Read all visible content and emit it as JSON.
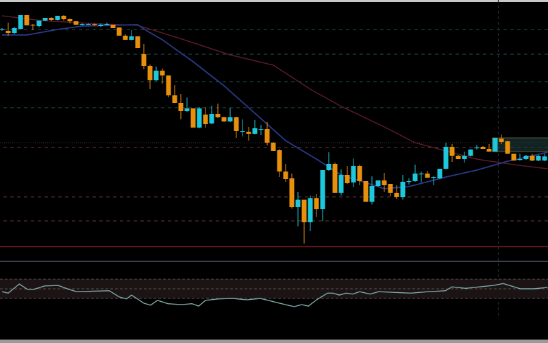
{
  "chart_data": [
    {
      "type": "candlestick",
      "title": "",
      "xlabel": "",
      "ylabel": "",
      "ylim": [
        40,
        400
      ],
      "grid": false,
      "colors": {
        "bull": "#1ec8dc",
        "bear": "#e8900c",
        "ma_fast": "#2a3a8a",
        "ma_slow": "#5a1a2a",
        "background": "#000000"
      },
      "candles_ohlc": [
        [
          357,
          359,
          355,
          358
        ],
        [
          355,
          367,
          348,
          352
        ],
        [
          352,
          361,
          350,
          359
        ],
        [
          358,
          378,
          357,
          378
        ],
        [
          378,
          378,
          363,
          363
        ],
        [
          364,
          365,
          356,
          363
        ],
        [
          362,
          370,
          360,
          370
        ],
        [
          370,
          374,
          369,
          374
        ],
        [
          374,
          375,
          369,
          371
        ],
        [
          371,
          377,
          370,
          377
        ],
        [
          377,
          378,
          370,
          372
        ],
        [
          372,
          373,
          366,
          369
        ],
        [
          369,
          369,
          364,
          364
        ],
        [
          364,
          366,
          363,
          365
        ],
        [
          365,
          366,
          364,
          365
        ],
        [
          365,
          366,
          362,
          364
        ],
        [
          362,
          366,
          361,
          364
        ],
        [
          364,
          367,
          363,
          365
        ],
        [
          364,
          364,
          359,
          359
        ],
        [
          360,
          360,
          348,
          348
        ],
        [
          348,
          350,
          342,
          342
        ],
        [
          342,
          356,
          341,
          347
        ],
        [
          347,
          347,
          330,
          330
        ],
        [
          321,
          336,
          299,
          304
        ],
        [
          304,
          306,
          270,
          283
        ],
        [
          283,
          303,
          282,
          297
        ],
        [
          297,
          300,
          278,
          290
        ],
        [
          290,
          290,
          258,
          261
        ],
        [
          261,
          276,
          250,
          250
        ],
        [
          250,
          263,
          226,
          238
        ],
        [
          238,
          258,
          237,
          242
        ],
        [
          242,
          242,
          214,
          214
        ],
        [
          214,
          244,
          213,
          242
        ],
        [
          233,
          244,
          214,
          219
        ],
        [
          220,
          246,
          219,
          234
        ],
        [
          234,
          249,
          228,
          229
        ],
        [
          229,
          230,
          222,
          223
        ],
        [
          223,
          243,
          222,
          229
        ],
        [
          229,
          230,
          199,
          209
        ],
        [
          209,
          226,
          201,
          209
        ],
        [
          208,
          215,
          195,
          205
        ],
        [
          205,
          225,
          204,
          213
        ],
        [
          212,
          218,
          203,
          212
        ],
        [
          212,
          222,
          188,
          192
        ],
        [
          192,
          193,
          180,
          180
        ],
        [
          181,
          183,
          142,
          150
        ],
        [
          150,
          161,
          135,
          139
        ],
        [
          140,
          147,
          96,
          98
        ],
        [
          98,
          120,
          70,
          109
        ],
        [
          109,
          109,
          45,
          76
        ],
        [
          76,
          115,
          63,
          111
        ],
        [
          111,
          117,
          84,
          95
        ],
        [
          95,
          152,
          78,
          152
        ],
        [
          152,
          178,
          151,
          161
        ],
        [
          161,
          163,
          119,
          119
        ],
        [
          119,
          153,
          115,
          145
        ],
        [
          145,
          158,
          132,
          133
        ],
        [
          134,
          169,
          127,
          158
        ],
        [
          158,
          160,
          130,
          136
        ],
        [
          136,
          136,
          106,
          106
        ],
        [
          106,
          143,
          102,
          129
        ],
        [
          129,
          137,
          128,
          137
        ],
        [
          137,
          148,
          120,
          130
        ],
        [
          132,
          132,
          114,
          119
        ],
        [
          119,
          130,
          110,
          113
        ],
        [
          113,
          145,
          109,
          135
        ],
        [
          135,
          140,
          131,
          136
        ],
        [
          136,
          160,
          135,
          147
        ],
        [
          147,
          150,
          134,
          147
        ],
        [
          147,
          151,
          141,
          141
        ],
        [
          142,
          143,
          130,
          142
        ],
        [
          140,
          154,
          139,
          154
        ],
        [
          154,
          192,
          153,
          186
        ],
        [
          186,
          190,
          164,
          173
        ],
        [
          173,
          174,
          168,
          168
        ],
        [
          168,
          179,
          163,
          173
        ],
        [
          173,
          183,
          172,
          182
        ],
        [
          184,
          189,
          182,
          185
        ],
        [
          186,
          187,
          183,
          183
        ],
        [
          183,
          190,
          179,
          179
        ],
        [
          179,
          199,
          179,
          199
        ],
        [
          198,
          204,
          190,
          193
        ],
        [
          194,
          195,
          176,
          176
        ],
        [
          176,
          176,
          166,
          166
        ],
        [
          167,
          176,
          166,
          168
        ],
        [
          168,
          174,
          167,
          173
        ],
        [
          173,
          176,
          165,
          166
        ],
        [
          166,
          174,
          165,
          173
        ],
        [
          166,
          176,
          165,
          172
        ]
      ],
      "ma_fast": [
        [
          0,
          349
        ],
        [
          4,
          349
        ],
        [
          9,
          357
        ],
        [
          13,
          362
        ],
        [
          22,
          364
        ],
        [
          23.5,
          355
        ],
        [
          26,
          342
        ],
        [
          31,
          310
        ],
        [
          36,
          275
        ],
        [
          41,
          235
        ],
        [
          46,
          195
        ],
        [
          51,
          168
        ],
        [
          55,
          145
        ],
        [
          62,
          125
        ],
        [
          66,
          128
        ],
        [
          72,
          142
        ],
        [
          77,
          152
        ],
        [
          82,
          165
        ],
        [
          88.5,
          178
        ]
      ],
      "ma_slow": [
        [
          0,
          377
        ],
        [
          6.3,
          370
        ],
        [
          16,
          365
        ],
        [
          22,
          363
        ],
        [
          28.5,
          345
        ],
        [
          37,
          320
        ],
        [
          44,
          305
        ],
        [
          50,
          270
        ],
        [
          55,
          245
        ],
        [
          62,
          215
        ],
        [
          67,
          192
        ],
        [
          72,
          180
        ],
        [
          77,
          168
        ],
        [
          83,
          160
        ],
        [
          88.5,
          154
        ]
      ],
      "levels": {
        "teal_dashed": [
          357,
          321,
          281,
          243
        ],
        "gray_dotted": [
          192
        ],
        "red_dashed": [
          185,
          113,
          78
        ],
        "red_solid": [
          40
        ]
      },
      "highlight_box": {
        "from_index": 79.5,
        "price_low": 179,
        "price_high": 199,
        "color": "#1e3a3a"
      },
      "vertical_marker_index": 80.5
    },
    {
      "type": "line",
      "title": "",
      "ylim": [
        0,
        100
      ],
      "band": [
        30,
        70
      ],
      "levels": [
        30,
        50,
        70
      ],
      "color": "#7fa8a8",
      "values": [
        [
          0,
          44
        ],
        [
          1,
          41
        ],
        [
          2.8,
          60
        ],
        [
          4.1,
          49
        ],
        [
          5.2,
          49
        ],
        [
          6.9,
          56
        ],
        [
          9.1,
          57
        ],
        [
          10.8,
          49
        ],
        [
          12.1,
          44
        ],
        [
          17.4,
          46
        ],
        [
          19,
          33
        ],
        [
          20.2,
          29
        ],
        [
          21,
          37
        ],
        [
          23,
          20
        ],
        [
          24.1,
          16
        ],
        [
          25.2,
          26
        ],
        [
          26.9,
          19
        ],
        [
          29.1,
          17
        ],
        [
          30.8,
          19
        ],
        [
          31.9,
          14
        ],
        [
          33,
          26
        ],
        [
          35.2,
          29
        ],
        [
          37.4,
          30
        ],
        [
          39.7,
          27
        ],
        [
          41.9,
          30
        ],
        [
          44.1,
          23
        ],
        [
          46.3,
          16
        ],
        [
          47.4,
          13
        ],
        [
          48.6,
          17
        ],
        [
          49.7,
          14
        ],
        [
          51,
          27
        ],
        [
          52.8,
          41
        ],
        [
          53.7,
          41
        ],
        [
          54.7,
          37
        ],
        [
          55.8,
          41
        ],
        [
          56.9,
          39
        ],
        [
          58,
          44
        ],
        [
          59.7,
          39
        ],
        [
          61.1,
          44
        ],
        [
          66.3,
          41
        ],
        [
          69.1,
          44
        ],
        [
          71.9,
          46
        ],
        [
          73,
          54
        ],
        [
          75.2,
          51
        ],
        [
          79.7,
          57
        ],
        [
          81.3,
          61
        ],
        [
          84.1,
          50
        ],
        [
          86.3,
          50
        ],
        [
          88.5,
          53
        ]
      ]
    }
  ]
}
